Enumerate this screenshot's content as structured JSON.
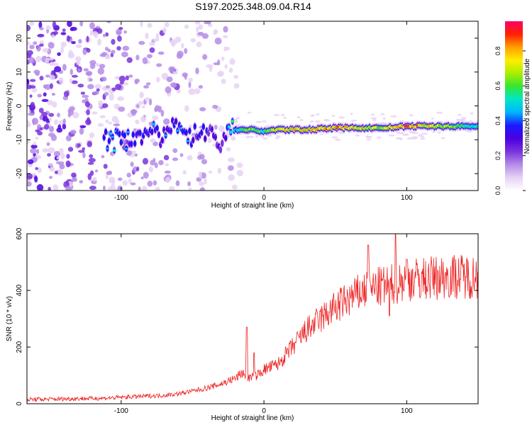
{
  "title": "S197.2025.348.09.04.R14",
  "colors": {
    "snr_line": "#ee2222",
    "axis": "#000000",
    "cmap": [
      "#ffffff",
      "#e6d2f5",
      "#b48ce6",
      "#7a33dd",
      "#4b00e0",
      "#1a1aff",
      "#00b4ff",
      "#00e6c8",
      "#33e633",
      "#aaee00",
      "#ffee00",
      "#ffa000",
      "#ff2000",
      "#ff0066"
    ]
  },
  "chart_data": [
    {
      "type": "heatmap",
      "name": "frequency-spectrogram",
      "xlabel": "Height of straight line (km)",
      "ylabel": "Frequency (Hz)",
      "xlim": [
        -166,
        150
      ],
      "ylim": [
        -25,
        25
      ],
      "xticks": [
        -100,
        0,
        100
      ],
      "xtick_labels": [
        "-100",
        "0",
        "100"
      ],
      "yticks": [
        -20,
        -10,
        0,
        10,
        20
      ],
      "ytick_labels": [
        "-20",
        "-10",
        "0",
        "10",
        "20"
      ],
      "colorbar": {
        "label": "Normalized spectral amplitude",
        "range": [
          0,
          0.97
        ],
        "ticks": [
          0.0,
          0.2,
          0.4,
          0.6,
          0.8
        ],
        "tick_labels": [
          "0.0",
          "0.2",
          "0.4",
          "0.6",
          "0.8"
        ]
      },
      "ridge": [
        {
          "x": -112,
          "f": -10.0,
          "amp": 0.45
        },
        {
          "x": -100,
          "f": -10.5,
          "amp": 0.4
        },
        {
          "x": -90,
          "f": -8.5,
          "amp": 0.35
        },
        {
          "x": -80,
          "f": -7.5,
          "amp": 0.4
        },
        {
          "x": -70,
          "f": -10.0,
          "amp": 0.35
        },
        {
          "x": -60,
          "f": -4.5,
          "amp": 0.4
        },
        {
          "x": -50,
          "f": -9.0,
          "amp": 0.35
        },
        {
          "x": -40,
          "f": -7.5,
          "amp": 0.3
        },
        {
          "x": -30,
          "f": -11.0,
          "amp": 0.3
        },
        {
          "x": -25,
          "f": -7.0,
          "amp": 0.45
        },
        {
          "x": -10,
          "f": -7.0,
          "amp": 0.65
        },
        {
          "x": 0,
          "f": -7.5,
          "amp": 0.6
        },
        {
          "x": 10,
          "f": -7.0,
          "amp": 0.8
        },
        {
          "x": 30,
          "f": -7.0,
          "amp": 0.8
        },
        {
          "x": 50,
          "f": -6.5,
          "amp": 0.85
        },
        {
          "x": 70,
          "f": -6.5,
          "amp": 0.75
        },
        {
          "x": 85,
          "f": -6.5,
          "amp": 0.7
        },
        {
          "x": 100,
          "f": -6.0,
          "amp": 0.92
        },
        {
          "x": 120,
          "f": -6.0,
          "amp": 0.75
        },
        {
          "x": 150,
          "f": -6.0,
          "amp": 0.55
        }
      ]
    },
    {
      "type": "line",
      "name": "snr",
      "xlabel": "Height of straight line (km)",
      "ylabel": "SNR (10 * v/v)",
      "xlim": [
        -166,
        150
      ],
      "ylim": [
        0,
        600
      ],
      "xticks": [
        -100,
        0,
        100
      ],
      "xtick_labels": [
        "-100",
        "0",
        "100"
      ],
      "yticks": [
        0,
        200,
        400,
        600
      ],
      "ytick_labels": [
        "0",
        "200",
        "400",
        "600"
      ],
      "series": [
        {
          "name": "SNR",
          "x": [
            -166,
            -150,
            -130,
            -110,
            -90,
            -70,
            -60,
            -50,
            -40,
            -30,
            -20,
            -15,
            -10,
            -5,
            0,
            5,
            10,
            15,
            20,
            25,
            30,
            40,
            50,
            60,
            70,
            80,
            90,
            100,
            110,
            120,
            130,
            140,
            150
          ],
          "y": [
            15,
            16,
            18,
            20,
            25,
            30,
            35,
            45,
            55,
            70,
            90,
            110,
            90,
            100,
            120,
            130,
            140,
            170,
            200,
            230,
            260,
            300,
            340,
            370,
            400,
            410,
            420,
            440,
            440,
            445,
            450,
            450,
            450
          ]
        }
      ],
      "spikes": [
        {
          "x": -12,
          "y": 270
        },
        {
          "x": -7,
          "y": 180
        },
        {
          "x": 73,
          "y": 560
        },
        {
          "x": 92,
          "y": 600
        },
        {
          "x": 88,
          "y": 310
        },
        {
          "x": 100,
          "y": 510
        }
      ]
    }
  ]
}
